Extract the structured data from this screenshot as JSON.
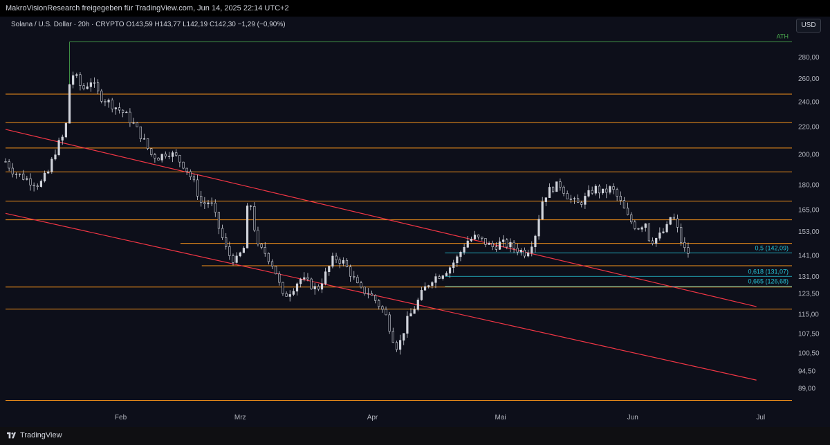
{
  "header": {
    "published_by": "MakroVisionResearch freigegeben für TradingView.com, Jun 14, 2025 22:14 UTC+2"
  },
  "legend": {
    "text": "Solana / U.S. Dollar · 20h · CRYPTO  O143,59  H143,77  L142,19  C142,30  −1,29 (−0,90%)"
  },
  "currency_button": "USD",
  "footer": {
    "brand": "TradingView"
  },
  "colors": {
    "background": "#0d0f1a",
    "support_resistance": "#f7931a",
    "trendline": "#f23645",
    "fib": "#26c6da",
    "ath": "#4caf50",
    "candle": "#d1d4dc"
  },
  "chart_data": {
    "type": "candlestick",
    "title": "",
    "symbol": "Solana / U.S. Dollar",
    "interval": "20h",
    "exchange": "CRYPTO",
    "ohlc_last": {
      "open": 143.59,
      "high": 143.77,
      "low": 142.19,
      "close": 142.3,
      "change": -1.29,
      "change_pct": -0.9
    },
    "x_range": [
      "2025-01-05",
      "2025-07-08"
    ],
    "y_scale": "log",
    "y_range": [
      82,
      310
    ],
    "x_ticks": [
      {
        "date": "2025-02-01",
        "label": "Feb"
      },
      {
        "date": "2025-03-01",
        "label": "Mrz"
      },
      {
        "date": "2025-04-01",
        "label": "Apr"
      },
      {
        "date": "2025-05-01",
        "label": "Mai"
      },
      {
        "date": "2025-06-01",
        "label": "Jun"
      },
      {
        "date": "2025-07-01",
        "label": "Jul"
      }
    ],
    "y_ticks": [
      {
        "value": 280,
        "label": "280,00"
      },
      {
        "value": 260,
        "label": "260,00"
      },
      {
        "value": 240,
        "label": "240,00"
      },
      {
        "value": 220,
        "label": "220,00"
      },
      {
        "value": 200,
        "label": "200,00"
      },
      {
        "value": 180,
        "label": "180,00"
      },
      {
        "value": 165,
        "label": "165,00"
      },
      {
        "value": 153,
        "label": "153,00"
      },
      {
        "value": 141,
        "label": "141,00"
      },
      {
        "value": 131,
        "label": "131,00"
      },
      {
        "value": 123.5,
        "label": "123,50"
      },
      {
        "value": 115,
        "label": "115,00"
      },
      {
        "value": 107.5,
        "label": "107,50"
      },
      {
        "value": 100.5,
        "label": "100,50"
      },
      {
        "value": 94.5,
        "label": "94,50"
      },
      {
        "value": 89,
        "label": "89,00"
      }
    ],
    "levels": [
      {
        "value": 295.11,
        "label": "295,11",
        "kind": "ath",
        "start": "2025-01-20",
        "note": "ATH"
      },
      {
        "value": 246.28,
        "label": "246,28",
        "kind": "level"
      },
      {
        "value": 223.16,
        "label": "223,16",
        "kind": "level"
      },
      {
        "value": 204.4,
        "label": "204,40",
        "kind": "level"
      },
      {
        "value": 188.18,
        "label": "188,18",
        "kind": "level"
      },
      {
        "value": 170.06,
        "label": "170,06",
        "kind": "level"
      },
      {
        "value": 159.39,
        "label": "159,39",
        "kind": "level"
      },
      {
        "value": 146.93,
        "label": "146,93",
        "kind": "level",
        "start": "2025-02-15"
      },
      {
        "value": 135.94,
        "label": "135,94",
        "kind": "level",
        "start": "2025-02-20"
      },
      {
        "value": 126.3,
        "label": "126,30",
        "kind": "level"
      },
      {
        "value": 117.0,
        "label": "117,00",
        "kind": "level"
      },
      {
        "value": 85.3,
        "label": "85,30",
        "kind": "level"
      }
    ],
    "fib_levels": [
      {
        "value": 142.09,
        "label": "0,5 (142,09)",
        "start": "2025-04-18"
      },
      {
        "value": 131.07,
        "label": "0,618 (131,07)",
        "start": "2025-04-18"
      },
      {
        "value": 126.68,
        "label": "0,665 (126,68)",
        "start": "2025-04-18"
      }
    ],
    "trendlines": [
      {
        "start": {
          "date": "2025-01-05",
          "value": 218
        },
        "end": {
          "date": "2025-06-30",
          "value": 118
        }
      },
      {
        "start": {
          "date": "2025-01-05",
          "value": 163
        },
        "end": {
          "date": "2025-06-30",
          "value": 91.5
        }
      }
    ],
    "price_path": [
      [
        "2025-01-05",
        195
      ],
      [
        "2025-01-07",
        188
      ],
      [
        "2025-01-09",
        185
      ],
      [
        "2025-01-11",
        182
      ],
      [
        "2025-01-13",
        180
      ],
      [
        "2025-01-15",
        188
      ],
      [
        "2025-01-17",
        205
      ],
      [
        "2025-01-19",
        215
      ],
      [
        "2025-01-20",
        255
      ],
      [
        "2025-01-21",
        265
      ],
      [
        "2025-01-23",
        250
      ],
      [
        "2025-01-25",
        258
      ],
      [
        "2025-01-27",
        245
      ],
      [
        "2025-01-29",
        240
      ],
      [
        "2025-01-31",
        235
      ],
      [
        "2025-02-02",
        230
      ],
      [
        "2025-02-04",
        222
      ],
      [
        "2025-02-06",
        212
      ],
      [
        "2025-02-08",
        200
      ],
      [
        "2025-02-10",
        198
      ],
      [
        "2025-02-12",
        202
      ],
      [
        "2025-02-14",
        198
      ],
      [
        "2025-02-16",
        192
      ],
      [
        "2025-02-18",
        182
      ],
      [
        "2025-02-20",
        168
      ],
      [
        "2025-02-22",
        170
      ],
      [
        "2025-02-24",
        155
      ],
      [
        "2025-02-26",
        142
      ],
      [
        "2025-02-28",
        138
      ],
      [
        "2025-03-02",
        145
      ],
      [
        "2025-03-03",
        175
      ],
      [
        "2025-03-05",
        145
      ],
      [
        "2025-03-07",
        142
      ],
      [
        "2025-03-09",
        135
      ],
      [
        "2025-03-11",
        122
      ],
      [
        "2025-03-13",
        125
      ],
      [
        "2025-03-15",
        130
      ],
      [
        "2025-03-17",
        128
      ],
      [
        "2025-03-19",
        125
      ],
      [
        "2025-03-21",
        132
      ],
      [
        "2025-03-23",
        140
      ],
      [
        "2025-03-25",
        138
      ],
      [
        "2025-03-27",
        132
      ],
      [
        "2025-03-29",
        125
      ],
      [
        "2025-03-31",
        124
      ],
      [
        "2025-04-02",
        120
      ],
      [
        "2025-04-04",
        115
      ],
      [
        "2025-04-06",
        105
      ],
      [
        "2025-04-07",
        102
      ],
      [
        "2025-04-09",
        112
      ],
      [
        "2025-04-11",
        118
      ],
      [
        "2025-04-13",
        125
      ],
      [
        "2025-04-15",
        130
      ],
      [
        "2025-04-17",
        132
      ],
      [
        "2025-04-19",
        135
      ],
      [
        "2025-04-21",
        140
      ],
      [
        "2025-04-23",
        148
      ],
      [
        "2025-04-25",
        150
      ],
      [
        "2025-04-27",
        148
      ],
      [
        "2025-04-29",
        145
      ],
      [
        "2025-05-01",
        147
      ],
      [
        "2025-05-03",
        146
      ],
      [
        "2025-05-05",
        144
      ],
      [
        "2025-05-07",
        142
      ],
      [
        "2025-05-09",
        150
      ],
      [
        "2025-05-11",
        172
      ],
      [
        "2025-05-13",
        178
      ],
      [
        "2025-05-15",
        180
      ],
      [
        "2025-05-17",
        172
      ],
      [
        "2025-05-19",
        168
      ],
      [
        "2025-05-21",
        172
      ],
      [
        "2025-05-23",
        178
      ],
      [
        "2025-05-25",
        175
      ],
      [
        "2025-05-27",
        178
      ],
      [
        "2025-05-29",
        170
      ],
      [
        "2025-05-31",
        160
      ],
      [
        "2025-06-02",
        155
      ],
      [
        "2025-06-04",
        158
      ],
      [
        "2025-06-05",
        148
      ],
      [
        "2025-06-07",
        150
      ],
      [
        "2025-06-09",
        155
      ],
      [
        "2025-06-10",
        162
      ],
      [
        "2025-06-11",
        158
      ],
      [
        "2025-06-12",
        150
      ],
      [
        "2025-06-13",
        144
      ],
      [
        "2025-06-14",
        142.3
      ]
    ]
  }
}
